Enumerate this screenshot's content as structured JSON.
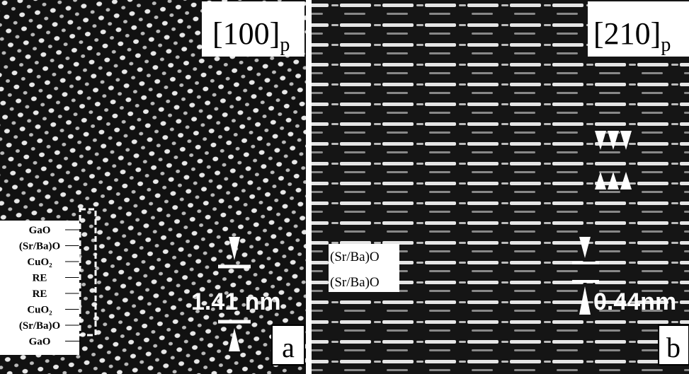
{
  "panel_a": {
    "zone": "[100]",
    "zone_subscript": "p",
    "layers": [
      "GaO",
      "(Sr/Ba)O",
      "CuO₂",
      "RE",
      "RE",
      "CuO₂",
      "(Sr/Ba)O",
      "GaO"
    ],
    "scale_label": "1.41 nm",
    "letter": "a"
  },
  "panel_b": {
    "zone": "[210]",
    "zone_subscript": "p",
    "layers": [
      "(Sr/Ba)O",
      "(Sr/Ba)O"
    ],
    "scale_label": "0.44nm",
    "letter": "b"
  }
}
